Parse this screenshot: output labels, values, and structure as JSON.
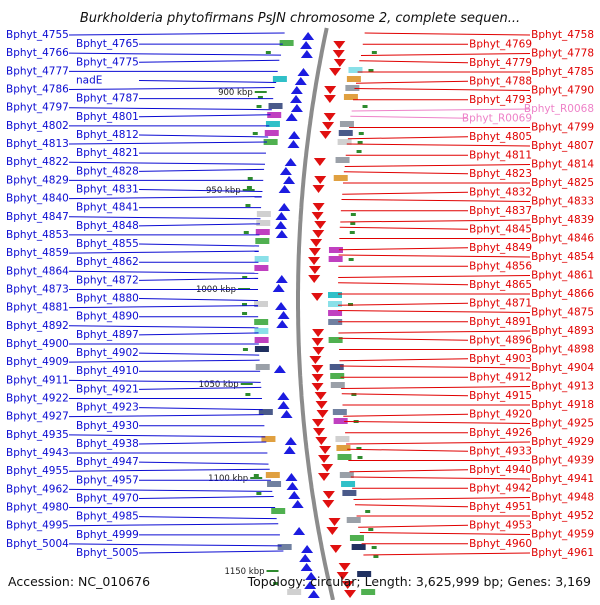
{
  "title": "Burkholderia phytofirmans PsJN chromosome 2, complete sequen...",
  "accession": "Accession: NC_010676",
  "topology": "Topology: circular; Length: 3,625,999 bp; Genes: 3,169",
  "colors": {
    "left_label": "#0b0bd2",
    "right_label": "#e00000",
    "rna_label": "#ee82c8",
    "backbone": "#8c8c8c",
    "marker": "#2e8b2e"
  },
  "kbp_ticks": [
    "900 kbp",
    "950 kbp",
    "1000 kbp",
    "1050 kbp",
    "1100 kbp",
    "1150 kbp"
  ],
  "left_labels": [
    "Bphyt_4755",
    "Bphyt_4765",
    "Bphyt_4766",
    "Bphyt_4775",
    "Bphyt_4777",
    "nadE",
    "Bphyt_4786",
    "Bphyt_4787",
    "Bphyt_4797",
    "Bphyt_4801",
    "Bphyt_4802",
    "Bphyt_4812",
    "Bphyt_4813",
    "Bphyt_4821",
    "Bphyt_4822",
    "Bphyt_4828",
    "Bphyt_4829",
    "Bphyt_4831",
    "Bphyt_4840",
    "Bphyt_4841",
    "Bphyt_4847",
    "Bphyt_4848",
    "Bphyt_4853",
    "Bphyt_4855",
    "Bphyt_4859",
    "Bphyt_4862",
    "Bphyt_4864",
    "Bphyt_4872",
    "Bphyt_4873",
    "Bphyt_4880",
    "Bphyt_4881",
    "Bphyt_4890",
    "Bphyt_4892",
    "Bphyt_4897",
    "Bphyt_4900",
    "Bphyt_4902",
    "Bphyt_4909",
    "Bphyt_4910",
    "Bphyt_4911",
    "Bphyt_4921",
    "Bphyt_4922",
    "Bphyt_4923",
    "Bphyt_4927",
    "Bphyt_4930",
    "Bphyt_4935",
    "Bphyt_4938",
    "Bphyt_4943",
    "Bphyt_4947",
    "Bphyt_4955",
    "Bphyt_4957",
    "Bphyt_4962",
    "Bphyt_4970",
    "Bphyt_4980",
    "Bphyt_4985",
    "Bphyt_4995",
    "Bphyt_4999",
    "Bphyt_5004",
    "Bphyt_5005"
  ],
  "right_labels": [
    "Bphyt_4758",
    "Bphyt_4769",
    "Bphyt_4778",
    "Bphyt_4779",
    "Bphyt_4785",
    "Bphyt_4788",
    "Bphyt_4790",
    "Bphyt_4793",
    "Bphyt_R0068",
    "Bphyt_R0069",
    "Bphyt_4799",
    "Bphyt_4805",
    "Bphyt_4807",
    "Bphyt_4811",
    "Bphyt_4814",
    "Bphyt_4823",
    "Bphyt_4825",
    "Bphyt_4832",
    "Bphyt_4833",
    "Bphyt_4837",
    "Bphyt_4839",
    "Bphyt_4845",
    "Bphyt_4846",
    "Bphyt_4849",
    "Bphyt_4854",
    "Bphyt_4856",
    "Bphyt_4861",
    "Bphyt_4865",
    "Bphyt_4866",
    "Bphyt_4871",
    "Bphyt_4875",
    "Bphyt_4891",
    "Bphyt_4893",
    "Bphyt_4896",
    "Bphyt_4898",
    "Bphyt_4903",
    "Bphyt_4904",
    "Bphyt_4912",
    "Bphyt_4913",
    "Bphyt_4915",
    "Bphyt_4918",
    "Bphyt_4920",
    "Bphyt_4925",
    "Bphyt_4926",
    "Bphyt_4929",
    "Bphyt_4933",
    "Bphyt_4939",
    "Bphyt_4940",
    "Bphyt_4941",
    "Bphyt_4942",
    "Bphyt_4948",
    "Bphyt_4951",
    "Bphyt_4952",
    "Bphyt_4953",
    "Bphyt_4959",
    "Bphyt_4960",
    "Bphyt_4961"
  ]
}
